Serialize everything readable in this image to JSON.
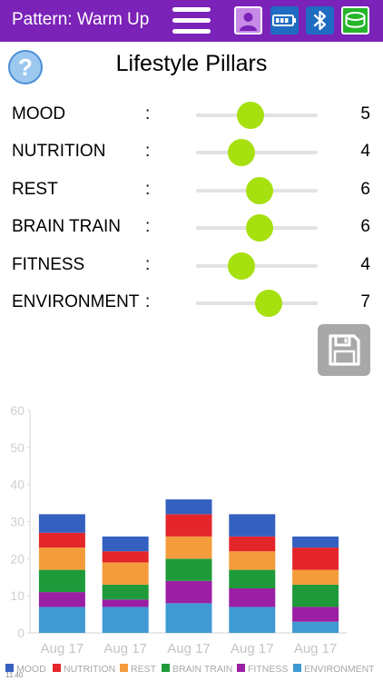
{
  "header": {
    "title": "Pattern: Warm Up",
    "colors": {
      "bar": "#7b22b8",
      "profile": "#c58be6",
      "battery": "#1f6cc2",
      "bluetooth": "#1f6cc2",
      "device": "#26b52a"
    },
    "icons": [
      "menu-icon",
      "profile-icon",
      "battery-icon",
      "bluetooth-icon",
      "headband-icon"
    ]
  },
  "page": {
    "title": "Lifestyle Pillars",
    "help_label": "?"
  },
  "pillars": [
    {
      "label": "MOOD",
      "colon": ":",
      "value": "5"
    },
    {
      "label": "NUTRITION",
      "colon": ":",
      "value": "4"
    },
    {
      "label": "REST",
      "colon": ":",
      "value": "6"
    },
    {
      "label": "BRAIN TRAIN",
      "colon": ":",
      "value": "6"
    },
    {
      "label": "FITNESS",
      "colon": ":",
      "value": "4"
    },
    {
      "label": "ENVIRONMENT",
      "colon": ":",
      "value": "7"
    }
  ],
  "slider_range": [
    0,
    10
  ],
  "save_icon": "floppy-disk-icon",
  "chart_data": {
    "type": "bar",
    "stacked": true,
    "categories": [
      "Aug 17",
      "Aug 17",
      "Aug 17",
      "Aug 17",
      "Aug 17"
    ],
    "ylim": [
      0,
      60
    ],
    "yticks": [
      "0",
      "10",
      "20",
      "30",
      "40",
      "50",
      "60"
    ],
    "legend_position": "bottom",
    "series": [
      {
        "name": "ENVIRONMENT",
        "color": "#3f9ad3",
        "values": [
          7,
          7,
          8,
          7,
          3
        ]
      },
      {
        "name": "FITNESS",
        "color": "#9b1fa5",
        "values": [
          4,
          2,
          6,
          5,
          4
        ]
      },
      {
        "name": "BRAIN TRAIN",
        "color": "#1e9a3a",
        "values": [
          6,
          4,
          6,
          5,
          6
        ]
      },
      {
        "name": "REST",
        "color": "#f49c3c",
        "values": [
          6,
          6,
          6,
          5,
          4
        ]
      },
      {
        "name": "NUTRITION",
        "color": "#e4262a",
        "values": [
          4,
          3,
          6,
          4,
          6
        ]
      },
      {
        "name": "MOOD",
        "color": "#3560bf",
        "values": [
          5,
          4,
          4,
          6,
          3
        ]
      }
    ],
    "footer_note": "11.40"
  }
}
